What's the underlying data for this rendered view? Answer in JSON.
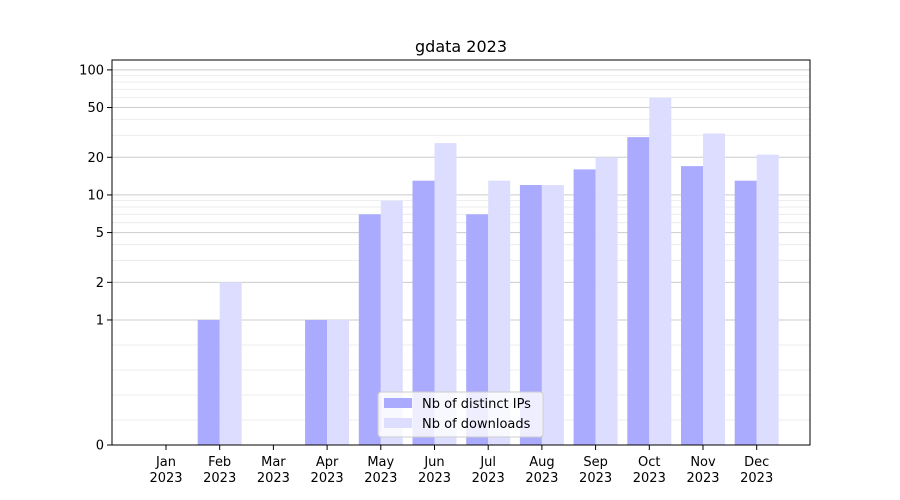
{
  "chart_data": {
    "type": "bar",
    "title": "gdata 2023",
    "xlabel": "",
    "ylabel": "",
    "yscale": "symlog",
    "ylim": [
      0,
      120
    ],
    "yticks": [
      0,
      1,
      2,
      5,
      10,
      20,
      50,
      100
    ],
    "grid": true,
    "legend_position": "lower-center",
    "categories": [
      "Jan\n2023",
      "Feb\n2023",
      "Mar\n2023",
      "Apr\n2023",
      "May\n2023",
      "Jun\n2023",
      "Jul\n2023",
      "Aug\n2023",
      "Sep\n2023",
      "Oct\n2023",
      "Nov\n2023",
      "Dec\n2023"
    ],
    "series": [
      {
        "name": "Nb of distinct IPs",
        "color": "#aaaaff",
        "values": [
          0,
          1,
          0,
          1,
          7,
          13,
          7,
          12,
          16,
          29,
          17,
          13
        ]
      },
      {
        "name": "Nb of downloads",
        "color": "#dddeff",
        "values": [
          0,
          2,
          0,
          1,
          9,
          26,
          13,
          12,
          20,
          60,
          31,
          21
        ]
      }
    ]
  }
}
